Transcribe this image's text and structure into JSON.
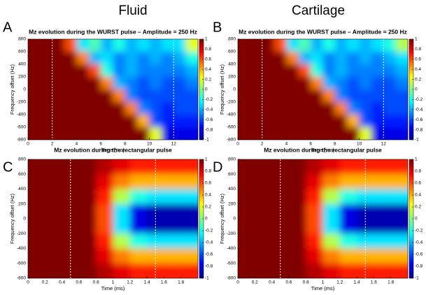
{
  "column_titles": [
    "Fluid",
    "Cartilage"
  ],
  "chart_data": [
    {
      "type": "heatmap",
      "label": "A",
      "title": "Mz evolution during the WURST pulse – Amplitude = 250 Hz",
      "x_label": "Time (ms)",
      "y_label": "Frequency offset (Hz)",
      "xlim": [
        0,
        14
      ],
      "xticks": [
        0,
        2,
        4,
        6,
        8,
        10,
        12
      ],
      "ylim": [
        -800,
        800
      ],
      "yticks": [
        -800,
        -600,
        -400,
        -200,
        0,
        200,
        400,
        600,
        800
      ],
      "clim": [
        -1,
        1
      ],
      "cticks": [
        -1,
        -0.8,
        -0.6,
        -0.4,
        -0.2,
        0,
        0.2,
        0.4,
        0.6,
        0.8,
        1
      ],
      "markers": [
        2,
        12
      ],
      "x": [
        0.5,
        1.5,
        2.5,
        3.5,
        4.5,
        5.5,
        6.5,
        7.5,
        8.5,
        9.5,
        10.5,
        11.5,
        12.5,
        13.5
      ],
      "y": [
        700,
        500,
        300,
        100,
        -100,
        -300,
        -500,
        -700
      ],
      "z": [
        [
          1,
          1,
          1,
          0.6,
          -0.3,
          -0.1,
          -0.4,
          -0.2,
          -0.4,
          -0.3,
          -0.4,
          -0.3,
          -0.3,
          0.2
        ],
        [
          1,
          1,
          1,
          1,
          0.5,
          -0.4,
          -0.3,
          -0.5,
          -0.4,
          -0.5,
          -0.4,
          -0.5,
          -0.4,
          -0.2
        ],
        [
          1,
          1,
          1,
          1,
          1,
          0.6,
          -0.2,
          -0.5,
          -0.4,
          -0.5,
          -0.5,
          -0.5,
          -0.5,
          -0.4
        ],
        [
          1,
          1,
          1,
          1,
          1,
          1,
          0.5,
          -0.4,
          -0.5,
          -0.6,
          -0.5,
          -0.6,
          -0.6,
          -0.5
        ],
        [
          1,
          1,
          1,
          1,
          1,
          1,
          1,
          0.5,
          -0.5,
          -0.6,
          -0.6,
          -0.6,
          -0.6,
          -0.6
        ],
        [
          1,
          1,
          1,
          1,
          1,
          1,
          1,
          1,
          0.5,
          -0.5,
          -0.6,
          -0.7,
          -0.6,
          -0.6
        ],
        [
          1,
          1,
          1,
          1,
          1,
          1,
          1,
          1,
          1,
          0.4,
          -0.6,
          -0.7,
          -0.7,
          -0.7
        ],
        [
          1,
          1,
          1,
          1,
          1,
          1,
          1,
          1,
          1,
          1,
          0.2,
          -0.8,
          -0.8,
          -0.8
        ]
      ]
    },
    {
      "type": "heatmap",
      "label": "B",
      "title": "Mz evolution during the WURST pulse – Amplitude = 250 Hz",
      "x_label": "Time (ms)",
      "y_label": "Frequency offset (Hz)",
      "xlim": [
        0,
        14
      ],
      "xticks": [
        0,
        2,
        4,
        6,
        8,
        10,
        12
      ],
      "ylim": [
        -800,
        800
      ],
      "yticks": [
        -800,
        -600,
        -400,
        -200,
        0,
        200,
        400,
        600,
        800
      ],
      "clim": [
        -1,
        1
      ],
      "cticks": [
        -1,
        -0.8,
        -0.6,
        -0.4,
        -0.2,
        0,
        0.2,
        0.4,
        0.6,
        0.8,
        1
      ],
      "markers": [
        2,
        12
      ],
      "x": [
        0.5,
        1.5,
        2.5,
        3.5,
        4.5,
        5.5,
        6.5,
        7.5,
        8.5,
        9.5,
        10.5,
        11.5,
        12.5,
        13.5
      ],
      "y": [
        700,
        500,
        300,
        100,
        -100,
        -300,
        -500,
        -700
      ],
      "z": [
        [
          1,
          1,
          1,
          0.6,
          -0.3,
          -0.1,
          -0.4,
          -0.2,
          -0.4,
          -0.3,
          -0.4,
          -0.3,
          -0.2,
          0.1
        ],
        [
          1,
          1,
          1,
          1,
          0.5,
          -0.4,
          -0.3,
          -0.5,
          -0.4,
          -0.5,
          -0.4,
          -0.5,
          -0.4,
          -0.3
        ],
        [
          1,
          1,
          1,
          1,
          1,
          0.6,
          -0.2,
          -0.5,
          -0.4,
          -0.5,
          -0.5,
          -0.5,
          -0.5,
          -0.4
        ],
        [
          1,
          1,
          1,
          1,
          1,
          1,
          0.5,
          -0.4,
          -0.5,
          -0.6,
          -0.5,
          -0.6,
          -0.6,
          -0.5
        ],
        [
          1,
          1,
          1,
          1,
          1,
          1,
          1,
          0.5,
          -0.5,
          -0.6,
          -0.6,
          -0.6,
          -0.6,
          -0.6
        ],
        [
          1,
          1,
          1,
          1,
          1,
          1,
          1,
          1,
          0.5,
          -0.5,
          -0.6,
          -0.7,
          -0.6,
          -0.6
        ],
        [
          1,
          1,
          1,
          1,
          1,
          1,
          1,
          1,
          1,
          0.4,
          -0.6,
          -0.7,
          -0.7,
          -0.7
        ],
        [
          1,
          1,
          1,
          1,
          1,
          1,
          1,
          1,
          1,
          1,
          0.2,
          -0.8,
          -0.8,
          -0.8
        ]
      ]
    },
    {
      "type": "heatmap",
      "label": "C",
      "title": "Mz evolution during the rectangular pulse",
      "x_label": "Time (ms)",
      "y_label": "Frequency offset (Hz)",
      "xlim": [
        0,
        2
      ],
      "xticks": [
        0,
        0.2,
        0.4,
        0.6,
        0.8,
        1,
        1.2,
        1.4,
        1.6,
        1.8
      ],
      "ylim": [
        -800,
        800
      ],
      "yticks": [
        -800,
        -600,
        -400,
        -200,
        0,
        200,
        400,
        600,
        800
      ],
      "clim": [
        -1,
        1
      ],
      "cticks": [
        -1,
        -0.8,
        -0.6,
        -0.4,
        -0.2,
        0,
        0.2,
        0.4,
        0.6,
        0.8,
        1
      ],
      "markers": [
        0.5,
        1.5
      ],
      "x": [
        0.1,
        0.3,
        0.5,
        0.7,
        0.9,
        1.1,
        1.3,
        1.5,
        1.7,
        1.9
      ],
      "y": [
        700,
        500,
        300,
        100,
        -100,
        -300,
        -500,
        -700
      ],
      "z": [
        [
          1,
          1,
          1,
          1,
          0.9,
          0.8,
          0.7,
          0.7,
          0.7,
          0.7
        ],
        [
          1,
          1,
          1,
          1,
          0.8,
          0.5,
          0.4,
          0.4,
          0.4,
          0.4
        ],
        [
          1,
          1,
          1,
          1,
          0.7,
          0.1,
          -0.2,
          -0.3,
          -0.3,
          -0.3
        ],
        [
          1,
          1,
          1,
          1,
          0.6,
          -0.3,
          -0.8,
          -0.9,
          -0.9,
          -0.9
        ],
        [
          1,
          1,
          1,
          1,
          0.6,
          -0.3,
          -0.8,
          -0.9,
          -0.9,
          -0.9
        ],
        [
          1,
          1,
          1,
          1,
          0.7,
          0.1,
          -0.2,
          -0.3,
          -0.3,
          -0.3
        ],
        [
          1,
          1,
          1,
          1,
          0.8,
          0.5,
          0.4,
          0.4,
          0.4,
          0.4
        ],
        [
          1,
          1,
          1,
          1,
          0.9,
          0.8,
          0.7,
          0.7,
          0.7,
          0.7
        ]
      ]
    },
    {
      "type": "heatmap",
      "label": "D",
      "title": "Mz evolution during the rectangular pulse",
      "x_label": "Time (ms)",
      "y_label": "Frequency offset (Hz)",
      "xlim": [
        0,
        2
      ],
      "xticks": [
        0,
        0.2,
        0.4,
        0.6,
        0.8,
        1,
        1.2,
        1.4,
        1.6,
        1.8
      ],
      "ylim": [
        -800,
        800
      ],
      "yticks": [
        -800,
        -600,
        -400,
        -200,
        0,
        200,
        400,
        600,
        800
      ],
      "clim": [
        -1,
        1
      ],
      "cticks": [
        -1,
        -0.8,
        -0.6,
        -0.4,
        -0.2,
        0,
        0.2,
        0.4,
        0.6,
        0.8,
        1
      ],
      "markers": [
        0.5,
        1.5
      ],
      "x": [
        0.1,
        0.3,
        0.5,
        0.7,
        0.9,
        1.1,
        1.3,
        1.5,
        1.7,
        1.9
      ],
      "y": [
        700,
        500,
        300,
        100,
        -100,
        -300,
        -500,
        -700
      ],
      "z": [
        [
          1,
          1,
          1,
          1,
          0.9,
          0.8,
          0.7,
          0.7,
          0.7,
          0.7
        ],
        [
          1,
          1,
          1,
          1,
          0.8,
          0.5,
          0.4,
          0.4,
          0.4,
          0.4
        ],
        [
          1,
          1,
          1,
          1,
          0.7,
          0.1,
          -0.2,
          -0.3,
          -0.3,
          -0.3
        ],
        [
          1,
          1,
          1,
          1,
          0.6,
          -0.3,
          -0.8,
          -0.9,
          -0.9,
          -0.9
        ],
        [
          1,
          1,
          1,
          1,
          0.6,
          -0.3,
          -0.8,
          -0.9,
          -0.9,
          -0.9
        ],
        [
          1,
          1,
          1,
          1,
          0.7,
          0.1,
          -0.2,
          -0.3,
          -0.3,
          -0.3
        ],
        [
          1,
          1,
          1,
          1,
          0.8,
          0.5,
          0.4,
          0.4,
          0.4,
          0.4
        ],
        [
          1,
          1,
          1,
          1,
          0.9,
          0.8,
          0.7,
          0.7,
          0.7,
          0.7
        ]
      ]
    }
  ]
}
